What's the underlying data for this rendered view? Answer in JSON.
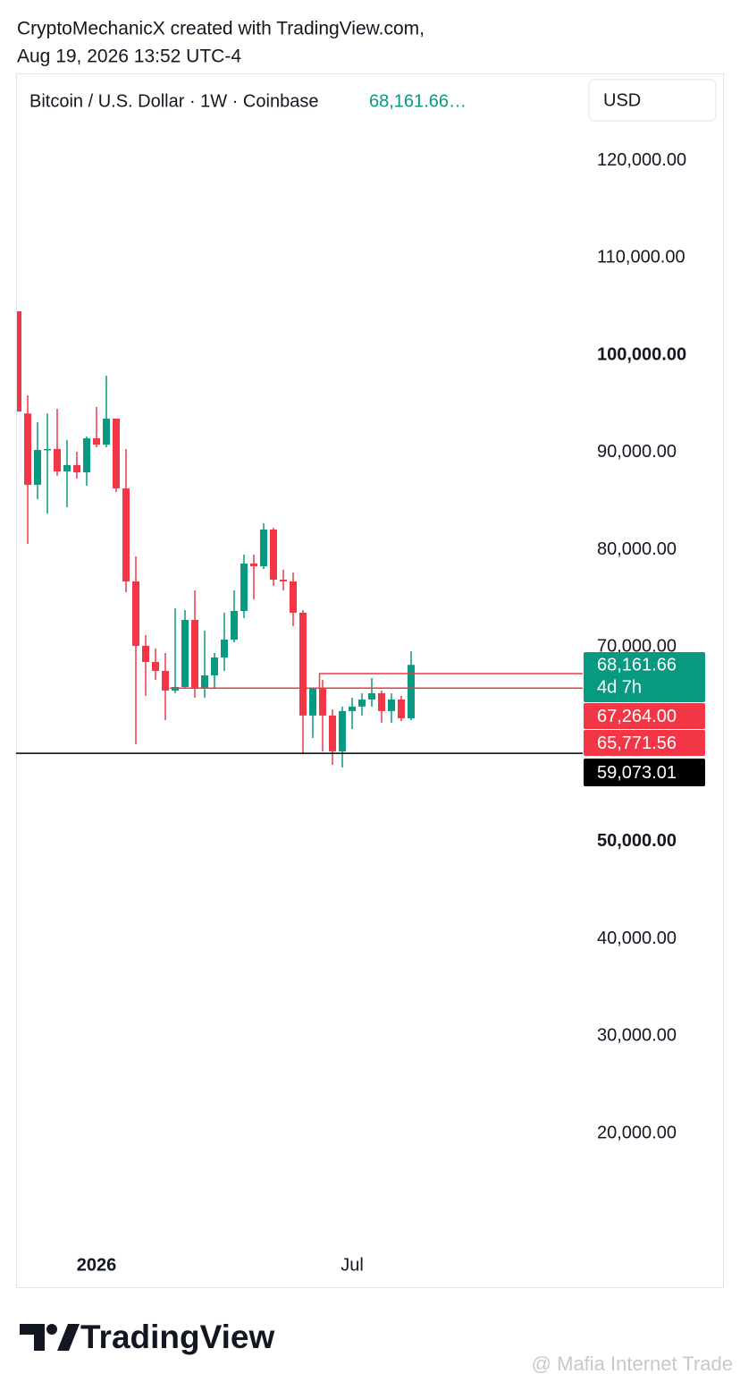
{
  "header": {
    "line1": "CryptoMechanicX created with TradingView.com,",
    "line2": "Aug 19, 2026 13:52 UTC-4"
  },
  "chart_data": {
    "type": "candlestick",
    "title": "Bitcoin / U.S. Dollar · 1W · Coinbase",
    "header_price": "68,161.66…",
    "currency": "USD",
    "up_color": "#089981",
    "down_color": "#f23645",
    "categories": [
      null,
      null,
      null,
      null,
      null,
      null,
      null,
      null,
      "2026",
      null,
      null,
      null,
      null,
      null,
      null,
      null,
      null,
      null,
      null,
      null,
      null,
      null,
      null,
      null,
      null,
      null,
      null,
      null,
      null,
      null,
      null,
      null,
      null,
      null,
      "Jul",
      null,
      null,
      null,
      null,
      null,
      null
    ],
    "open": [
      104500,
      94000,
      86670,
      90250,
      90350,
      88050,
      88700,
      87950,
      91450,
      90800,
      93470,
      86300,
      76740,
      70120,
      68460,
      67540,
      65520,
      65890,
      72780,
      65700,
      67080,
      68920,
      70760,
      73700,
      78580,
      78300,
      82070,
      76920,
      76740,
      73520,
      62950,
      65700,
      62950,
      59270,
      63410,
      63870,
      64600,
      65240,
      63410,
      64600,
      62670
    ],
    "high": [
      104500,
      95860,
      93100,
      94000,
      94480,
      91260,
      90070,
      91630,
      94670,
      97890,
      93470,
      90350,
      79310,
      71220,
      69840,
      69380,
      73980,
      73790,
      75820,
      71680,
      69380,
      73520,
      75820,
      79500,
      79500,
      82710,
      82250,
      77930,
      77650,
      73790,
      65700,
      66620,
      63590,
      63870,
      64780,
      65240,
      66800,
      65520,
      65240,
      64970,
      69560
    ],
    "low": [
      94200,
      80600,
      85200,
      83700,
      87600,
      84370,
      87300,
      86570,
      90530,
      90530,
      85930,
      75630,
      60000,
      64970,
      66620,
      62480,
      65240,
      65700,
      64780,
      64780,
      65700,
      67540,
      70480,
      72970,
      74900,
      78020,
      76280,
      75820,
      72140,
      58990,
      60640,
      59270,
      57880,
      57610,
      61560,
      62950,
      63870,
      62200,
      62200,
      62380,
      62480
    ],
    "close": [
      94200,
      86670,
      90250,
      90350,
      88050,
      88700,
      87950,
      91450,
      90800,
      93470,
      86300,
      76740,
      70120,
      68460,
      67540,
      65520,
      65890,
      72780,
      65700,
      67080,
      68920,
      70760,
      73700,
      78580,
      78300,
      82070,
      76920,
      76740,
      73520,
      62950,
      65700,
      62950,
      59270,
      63410,
      63870,
      64600,
      65240,
      63410,
      64600,
      62670,
      68160
    ],
    "ylim": [
      10000,
      130000
    ],
    "yticks": [
      {
        "value": 120000,
        "label": "120,000.00"
      },
      {
        "value": 110000,
        "label": "110,000.00"
      },
      {
        "value": 100000,
        "label": "100,000.00",
        "bold": true
      },
      {
        "value": 90000,
        "label": "90,000.00"
      },
      {
        "value": 80000,
        "label": "80,000.00"
      },
      {
        "value": 70000,
        "label": "70,000.00"
      },
      {
        "value": 50000,
        "label": "50,000.00",
        "bold": true
      },
      {
        "value": 40000,
        "label": "40,000.00"
      },
      {
        "value": 30000,
        "label": "30,000.00"
      },
      {
        "value": 20000,
        "label": "20,000.00"
      }
    ],
    "price_lines": [
      {
        "value": 68161.66,
        "label": "68,161.66",
        "countdown": "4d 7h",
        "color": "#089981"
      },
      {
        "value": 67264,
        "label": "67,264.00",
        "color": "#f23645"
      },
      {
        "value": 65771.56,
        "label": "65,771.56",
        "color": "#f23645"
      },
      {
        "value": 59073.01,
        "label": "59,073.01",
        "color": "#000000"
      }
    ]
  },
  "footer": {
    "brand": "TradingView",
    "watermark": "@ Mafia Internet Trade"
  }
}
